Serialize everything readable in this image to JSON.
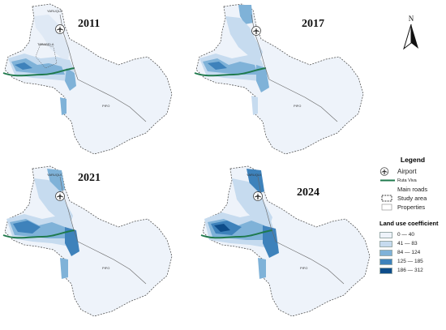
{
  "panels": [
    {
      "year": "2011",
      "labels": {
        "north_town": "YARUQUI",
        "center": "TABABELA",
        "east_town": "PIFO"
      }
    },
    {
      "year": "2017",
      "labels": {
        "north_town": "",
        "center": "",
        "east_town": "PIFO"
      }
    },
    {
      "year": "2021",
      "labels": {
        "north_town": "YARUQUI",
        "center": "",
        "east_town": "PIFO"
      }
    },
    {
      "year": "2024",
      "labels": {
        "north_town": "YARUQUI",
        "center": "",
        "east_town": "PIFO"
      }
    }
  ],
  "north_arrow": {
    "label": "N"
  },
  "legend": {
    "title": "Legend",
    "items": [
      {
        "label": "Airport",
        "symbol": "airplane-icon"
      },
      {
        "label": "Ruta Viva",
        "symbol": "green-line",
        "color": "#1f7a4d"
      },
      {
        "label": "Main roads",
        "symbol": "none"
      },
      {
        "label": "Study area",
        "symbol": "dashed-box"
      },
      {
        "label": "Properties",
        "symbol": "plain-box"
      }
    ],
    "class_title": "Land use coefficient",
    "classes": [
      {
        "label": "0 — 40",
        "color": "#eef3fa"
      },
      {
        "label": "41 — 83",
        "color": "#c6dbef"
      },
      {
        "label": "84 — 124",
        "color": "#7fb2d8"
      },
      {
        "label": "125 — 185",
        "color": "#3e82bb"
      },
      {
        "label": "186 — 312",
        "color": "#0e4d8a"
      }
    ]
  },
  "colors": {
    "base": "#eef3fa",
    "route": "#1f7a4d",
    "boundary": "#555555"
  }
}
